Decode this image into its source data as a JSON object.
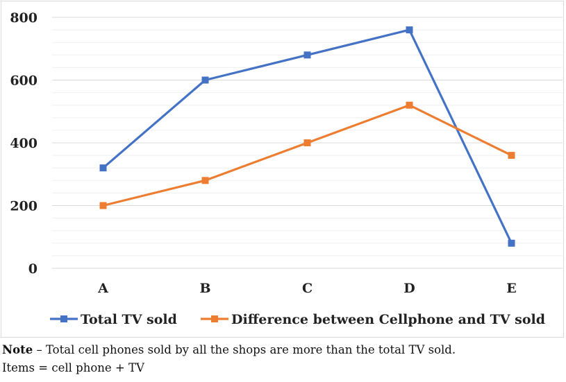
{
  "chart_data": {
    "type": "line",
    "categories": [
      "A",
      "B",
      "C",
      "D",
      "E"
    ],
    "series": [
      {
        "name": "Total TV sold",
        "values": [
          320,
          600,
          680,
          760,
          80
        ],
        "color": "#4472c4"
      },
      {
        "name": "Difference between Cellphone and TV sold",
        "values": [
          200,
          280,
          400,
          520,
          360
        ],
        "color": "#ed7d31"
      }
    ],
    "ylim": [
      0,
      800
    ],
    "yticks": [
      0,
      200,
      400,
      600,
      800
    ],
    "grid": true,
    "legend_position": "bottom"
  },
  "note": {
    "label": "Note",
    "text": " – Total cell phones sold by all the shops are more than the total TV sold.",
    "line2": "Items = cell phone + TV"
  }
}
